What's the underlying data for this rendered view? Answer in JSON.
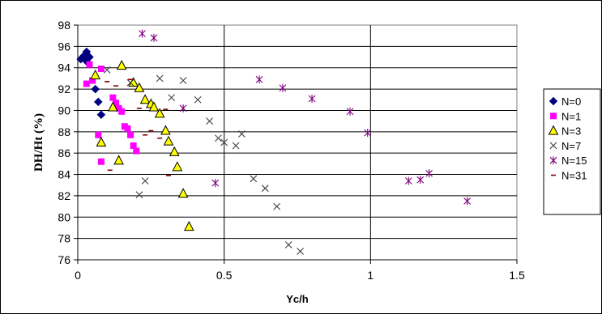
{
  "chart_data": {
    "type": "scatter",
    "title": "",
    "xlabel": "Yc/h",
    "ylabel": "DH/Ht (%)",
    "xlim": [
      0,
      1.5
    ],
    "ylim": [
      76,
      98
    ],
    "x_ticks": [
      "0",
      "0.5",
      "1",
      "1.5"
    ],
    "y_ticks": [
      "76",
      "78",
      "80",
      "82",
      "84",
      "86",
      "88",
      "90",
      "92",
      "94",
      "96",
      "98"
    ],
    "grid": "horizontal and vertical",
    "legend_position": "right",
    "series": [
      {
        "name": "N=0",
        "marker": "diamond",
        "color": "#00007F",
        "points": [
          [
            0.01,
            94.8
          ],
          [
            0.02,
            95.1
          ],
          [
            0.03,
            95.5
          ],
          [
            0.03,
            94.6
          ],
          [
            0.04,
            95.0
          ],
          [
            0.06,
            92.0
          ],
          [
            0.07,
            90.8
          ],
          [
            0.08,
            89.6
          ]
        ]
      },
      {
        "name": "N=1",
        "marker": "square",
        "color": "#FF00FF",
        "points": [
          [
            0.03,
            92.5
          ],
          [
            0.04,
            94.3
          ],
          [
            0.05,
            92.8
          ],
          [
            0.07,
            87.7
          ],
          [
            0.08,
            85.2
          ],
          [
            0.08,
            93.9
          ],
          [
            0.12,
            91.2
          ],
          [
            0.13,
            90.7
          ],
          [
            0.14,
            90.2
          ],
          [
            0.15,
            89.9
          ],
          [
            0.16,
            88.5
          ],
          [
            0.17,
            88.3
          ],
          [
            0.18,
            87.7
          ],
          [
            0.19,
            86.7
          ],
          [
            0.2,
            86.2
          ]
        ]
      },
      {
        "name": "N=3",
        "marker": "triangle",
        "color": "#FFFF00",
        "points": [
          [
            0.06,
            93.3
          ],
          [
            0.08,
            87.0
          ],
          [
            0.12,
            90.3
          ],
          [
            0.14,
            85.3
          ],
          [
            0.15,
            94.2
          ],
          [
            0.19,
            92.6
          ],
          [
            0.21,
            92.1
          ],
          [
            0.23,
            91.0
          ],
          [
            0.25,
            90.6
          ],
          [
            0.26,
            90.3
          ],
          [
            0.28,
            89.7
          ],
          [
            0.3,
            88.1
          ],
          [
            0.31,
            87.1
          ],
          [
            0.33,
            86.1
          ],
          [
            0.34,
            84.7
          ],
          [
            0.36,
            82.2
          ],
          [
            0.38,
            79.1
          ]
        ]
      },
      {
        "name": "N=7",
        "marker": "x",
        "color": "#3F3F3F",
        "points": [
          [
            0.1,
            93.8
          ],
          [
            0.18,
            92.6
          ],
          [
            0.21,
            82.1
          ],
          [
            0.23,
            83.4
          ],
          [
            0.28,
            93.0
          ],
          [
            0.32,
            91.2
          ],
          [
            0.36,
            92.8
          ],
          [
            0.41,
            91.0
          ],
          [
            0.45,
            89.0
          ],
          [
            0.48,
            87.4
          ],
          [
            0.5,
            87.0
          ],
          [
            0.54,
            86.7
          ],
          [
            0.56,
            87.8
          ],
          [
            0.6,
            83.6
          ],
          [
            0.64,
            82.7
          ],
          [
            0.68,
            81.0
          ],
          [
            0.72,
            77.4
          ],
          [
            0.76,
            76.8
          ]
        ]
      },
      {
        "name": "N=15",
        "marker": "asterisk",
        "color": "#7F007F",
        "points": [
          [
            0.22,
            97.2
          ],
          [
            0.26,
            96.8
          ],
          [
            0.36,
            90.2
          ],
          [
            0.47,
            83.2
          ],
          [
            0.62,
            92.9
          ],
          [
            0.7,
            92.1
          ],
          [
            0.8,
            91.1
          ],
          [
            0.93,
            89.9
          ],
          [
            0.99,
            87.9
          ],
          [
            1.13,
            83.4
          ],
          [
            1.17,
            83.5
          ],
          [
            1.2,
            84.1
          ],
          [
            1.33,
            81.5
          ]
        ]
      },
      {
        "name": "N=31",
        "marker": "dash",
        "color": "#7F0000",
        "points": [
          [
            0.1,
            92.7
          ],
          [
            0.11,
            84.4
          ],
          [
            0.13,
            92.3
          ],
          [
            0.18,
            92.9
          ],
          [
            0.21,
            90.2
          ],
          [
            0.23,
            87.7
          ],
          [
            0.25,
            88.1
          ],
          [
            0.28,
            87.4
          ],
          [
            0.3,
            90.1
          ],
          [
            0.31,
            83.9
          ]
        ]
      }
    ]
  }
}
